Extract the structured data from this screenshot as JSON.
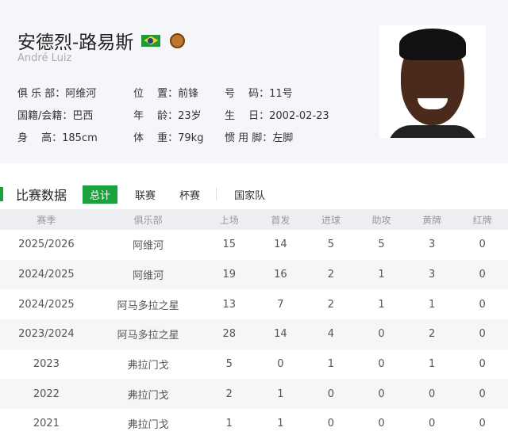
{
  "player": {
    "name_cn": "安德烈-路易斯",
    "name_en": "André Luiz",
    "flag_icon": "brazil-flag-icon",
    "club_icon": "rio-ave-crest-icon"
  },
  "info": [
    [
      {
        "label": "俱 乐 部：",
        "value": "阿维河"
      },
      {
        "label": "位　 置：",
        "value": "前锋"
      },
      {
        "label": "号　 码：",
        "value": "11号"
      }
    ],
    [
      {
        "label": "国籍/会籍：",
        "value": "巴西"
      },
      {
        "label": "年　 龄：",
        "value": "23岁"
      },
      {
        "label": "生　 日：",
        "value": "2002-02-23"
      }
    ],
    [
      {
        "label": "身　 高：",
        "value": "185cm"
      },
      {
        "label": "体　 重：",
        "value": "79kg"
      },
      {
        "label": "惯 用 脚：",
        "value": "左脚"
      }
    ]
  ],
  "section": {
    "title": "比赛数据",
    "tabs": [
      "总计",
      "联赛",
      "杯赛",
      "国家队"
    ],
    "active_tab": "总计"
  },
  "table": {
    "headers": [
      "赛季",
      "俱乐部",
      "上场",
      "首发",
      "进球",
      "助攻",
      "黄牌",
      "红牌"
    ],
    "rows": [
      [
        "2025/2026",
        "阿维河",
        "15",
        "14",
        "5",
        "5",
        "3",
        "0"
      ],
      [
        "2024/2025",
        "阿维河",
        "19",
        "16",
        "2",
        "1",
        "3",
        "0"
      ],
      [
        "2024/2025",
        "阿马多拉之星",
        "13",
        "7",
        "2",
        "1",
        "1",
        "0"
      ],
      [
        "2023/2024",
        "阿马多拉之星",
        "28",
        "14",
        "4",
        "0",
        "2",
        "0"
      ],
      [
        "2023",
        "弗拉门戈",
        "5",
        "0",
        "1",
        "0",
        "1",
        "0"
      ],
      [
        "2022",
        "弗拉门戈",
        "2",
        "1",
        "0",
        "0",
        "0",
        "0"
      ],
      [
        "2021",
        "弗拉门戈",
        "1",
        "1",
        "0",
        "0",
        "0",
        "0"
      ]
    ]
  },
  "colors": {
    "accent": "#1aa33c",
    "header_bg": "#f5f6fa"
  }
}
